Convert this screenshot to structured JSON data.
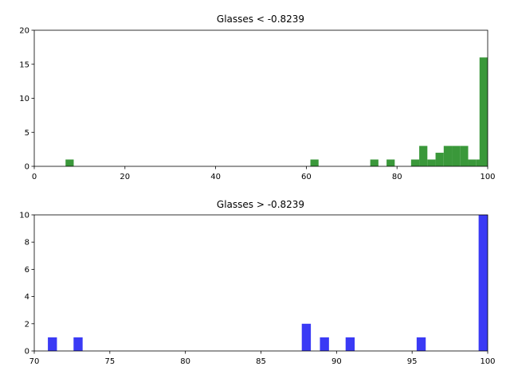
{
  "chart_data": [
    {
      "type": "bar",
      "title": "Glasses < -0.8239",
      "xlabel": "",
      "ylabel": "",
      "xlim": [
        0,
        100
      ],
      "ylim": [
        0,
        20
      ],
      "xticks": [
        0,
        20,
        40,
        60,
        80,
        100
      ],
      "yticks": [
        0,
        5,
        10,
        15,
        20
      ],
      "bin_width": 1.8,
      "color": "#3a983a",
      "grid": false,
      "bins": [
        {
          "x": 6.9,
          "value": 1
        },
        {
          "x": 60.9,
          "value": 1
        },
        {
          "x": 74.1,
          "value": 1
        },
        {
          "x": 77.7,
          "value": 1
        },
        {
          "x": 83.1,
          "value": 1
        },
        {
          "x": 84.9,
          "value": 3
        },
        {
          "x": 86.7,
          "value": 1
        },
        {
          "x": 88.5,
          "value": 2
        },
        {
          "x": 90.3,
          "value": 3
        },
        {
          "x": 92.1,
          "value": 3
        },
        {
          "x": 93.9,
          "value": 3
        },
        {
          "x": 95.7,
          "value": 1
        },
        {
          "x": 97.5,
          "value": 1
        },
        {
          "x": 98.2,
          "value": 16
        }
      ]
    },
    {
      "type": "bar",
      "title": "Glasses > -0.8239",
      "xlabel": "",
      "ylabel": "",
      "xlim": [
        70,
        100
      ],
      "ylim": [
        0,
        10
      ],
      "xticks": [
        70,
        75,
        80,
        85,
        90,
        95,
        100
      ],
      "yticks": [
        0,
        2,
        4,
        6,
        8,
        10
      ],
      "bin_width": 0.6,
      "color": "#3a3af5",
      "grid": false,
      "bins": [
        {
          "x": 70.9,
          "value": 1
        },
        {
          "x": 72.6,
          "value": 1
        },
        {
          "x": 87.7,
          "value": 2
        },
        {
          "x": 88.9,
          "value": 1
        },
        {
          "x": 90.6,
          "value": 1
        },
        {
          "x": 95.3,
          "value": 1
        },
        {
          "x": 99.4,
          "value": 10
        }
      ]
    }
  ]
}
